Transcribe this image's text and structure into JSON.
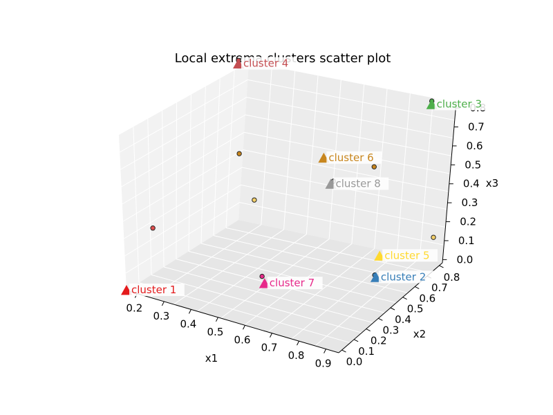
{
  "chart_data": {
    "type": "scatter",
    "title": "Local extrema clusters scatter plot",
    "xlabel": "x1",
    "ylabel": "x2",
    "zlabel": "x3",
    "grid": true,
    "xlim": [
      0.15,
      0.92
    ],
    "ylim": [
      0.0,
      0.85
    ],
    "zlim": [
      0.0,
      0.85
    ],
    "xticks": [
      "0.2",
      "0.3",
      "0.4",
      "0.5",
      "0.6",
      "0.7",
      "0.8",
      "0.9"
    ],
    "yticks": [
      "0.0",
      "0.1",
      "0.2",
      "0.3",
      "0.4",
      "0.5",
      "0.6",
      "0.7",
      "0.8"
    ],
    "zticks": [
      "0.0",
      "0.1",
      "0.2",
      "0.3",
      "0.4",
      "0.5",
      "0.6",
      "0.7",
      "0.8"
    ],
    "centroids": [
      {
        "label": "cluster 1",
        "color": "#e41a1c",
        "x": 0.15,
        "y": 0.0,
        "z": 0.0
      },
      {
        "label": "cluster 2",
        "color": "#377eb8",
        "x": 0.9,
        "y": 0.35,
        "z": 0.2
      },
      {
        "label": "cluster 3",
        "color": "#4daf4a",
        "x": 0.88,
        "y": 0.85,
        "z": 0.85
      },
      {
        "label": "cluster 4",
        "color": "#c44e52",
        "x": 0.15,
        "y": 0.85,
        "z": 0.85
      },
      {
        "label": "cluster 5",
        "color": "#ffd92f",
        "x": 0.9,
        "y": 0.38,
        "z": 0.3
      },
      {
        "label": "cluster 6",
        "color": "#c8861e",
        "x": 0.52,
        "y": 0.75,
        "z": 0.5
      },
      {
        "label": "cluster 7",
        "color": "#e7298a",
        "x": 0.55,
        "y": 0.22,
        "z": 0.1
      },
      {
        "label": "cluster 8",
        "color": "#999999",
        "x": 0.57,
        "y": 0.7,
        "z": 0.4
      }
    ],
    "points": [
      {
        "x": 0.15,
        "y": 0.85,
        "z": 0.87,
        "color": "#c44e52"
      },
      {
        "x": 0.88,
        "y": 0.85,
        "z": 0.87,
        "color": "#4daf4a"
      },
      {
        "x": 0.3,
        "y": 0.55,
        "z": 0.55,
        "color": "#c8861e"
      },
      {
        "x": 0.7,
        "y": 0.77,
        "z": 0.5,
        "color": "#c8861e"
      },
      {
        "x": 0.38,
        "y": 0.5,
        "z": 0.35,
        "color": "#f4d06a"
      },
      {
        "x": 0.58,
        "y": 0.7,
        "z": 0.42,
        "color": "#999999"
      },
      {
        "x": 0.15,
        "y": 0.2,
        "z": 0.25,
        "color": "#e05050"
      },
      {
        "x": 0.55,
        "y": 0.2,
        "z": 0.15,
        "color": "#e7298a"
      },
      {
        "x": 0.9,
        "y": 0.34,
        "z": 0.22,
        "color": "#377eb8"
      },
      {
        "x": 0.9,
        "y": 0.82,
        "z": 0.15,
        "color": "#f4d06a"
      }
    ]
  }
}
